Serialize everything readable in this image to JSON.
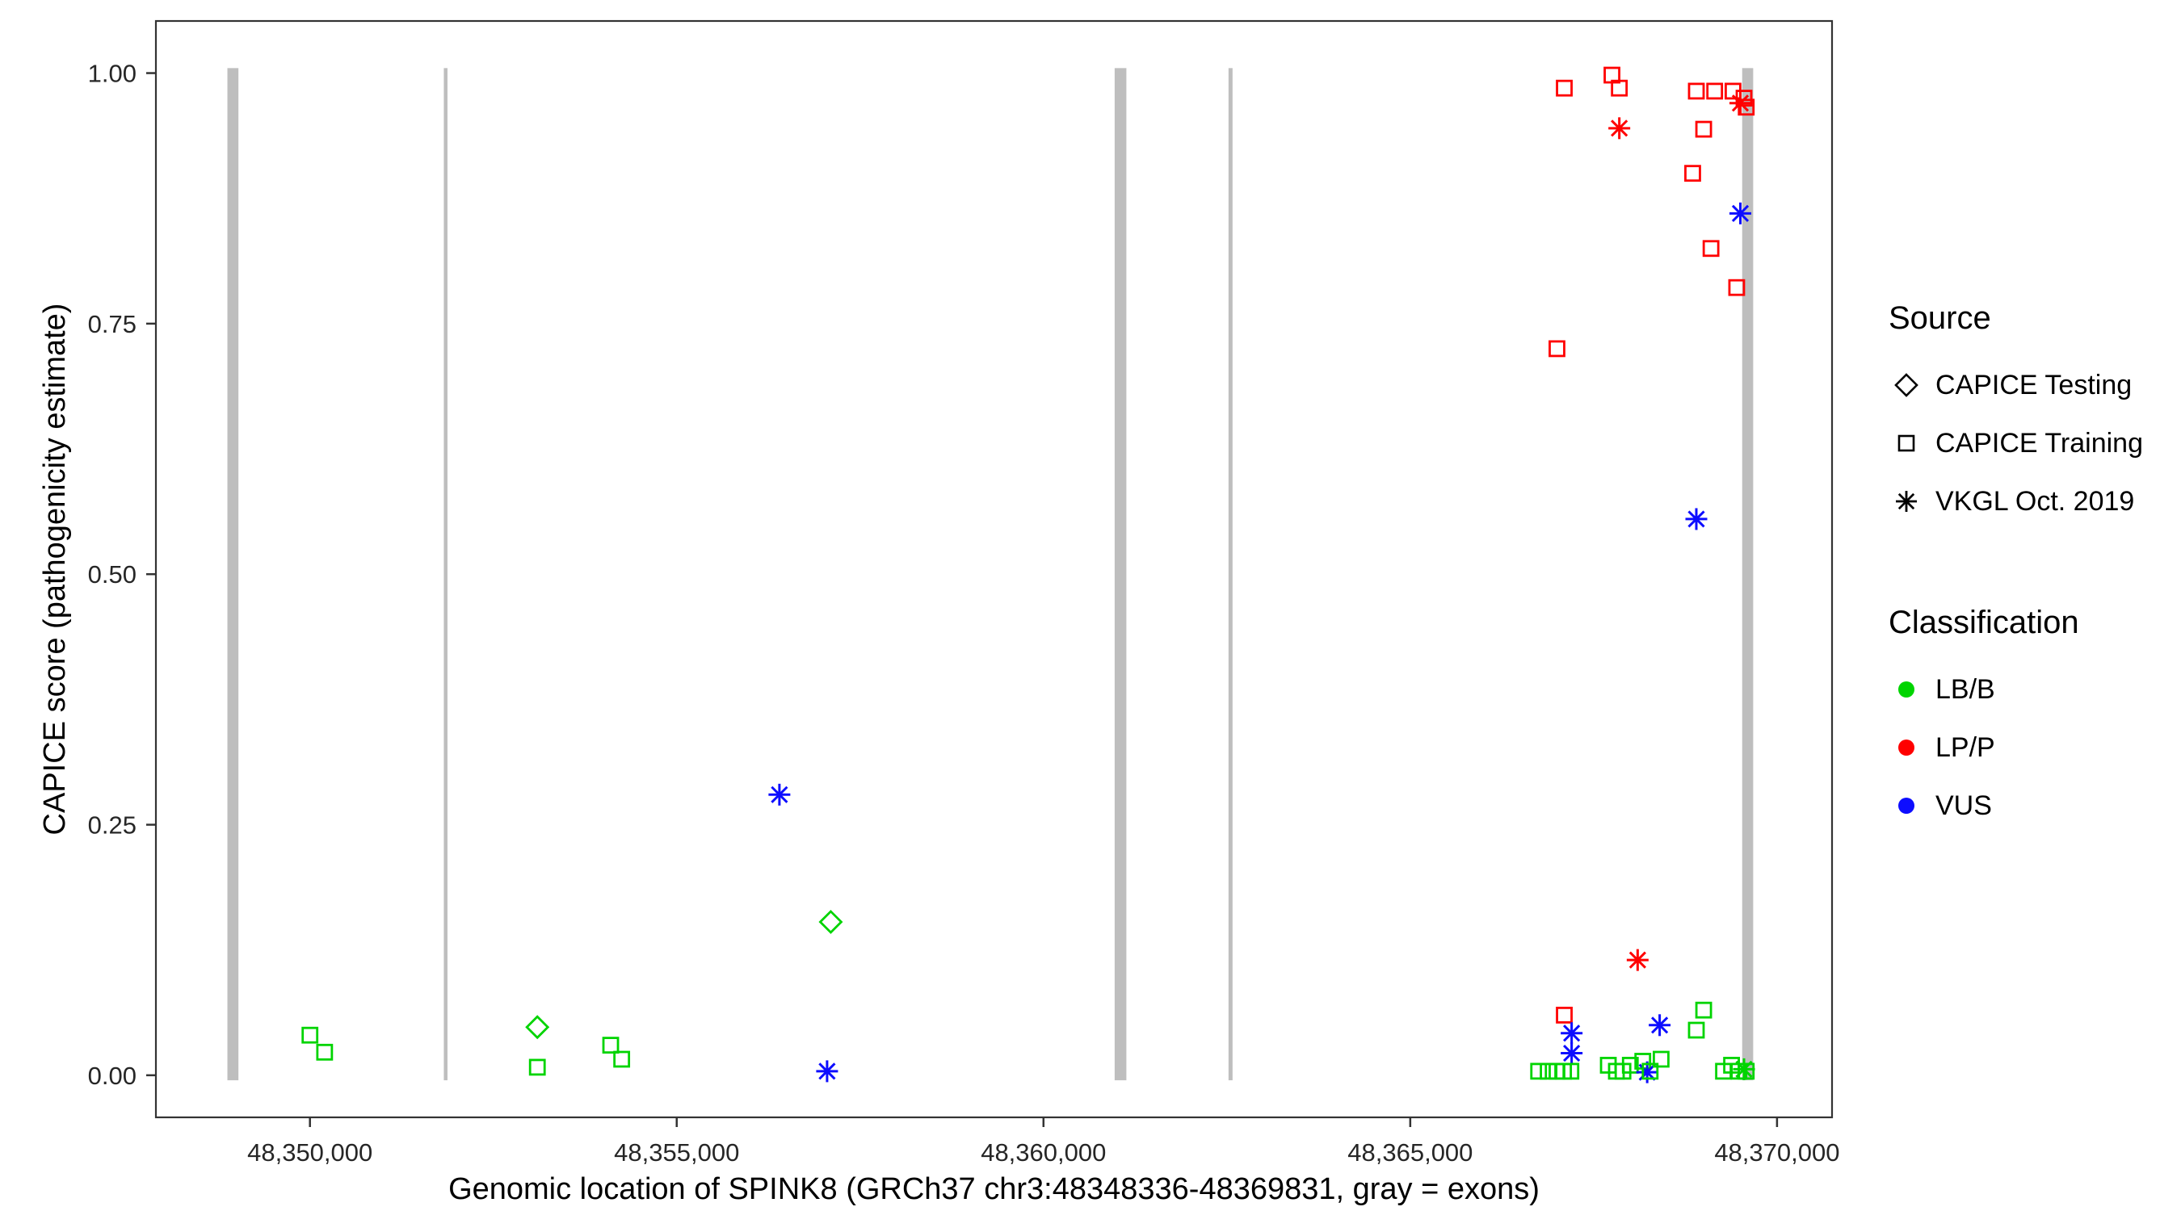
{
  "figure": {
    "background": "#FFFFFF"
  },
  "chart_data": {
    "type": "scatter",
    "title": "",
    "xlabel": "Genomic location of SPINK8 (GRCh37 chr3:48348336-48369831, gray = exons)",
    "ylabel": "CAPICE score (pathogenicity estimate)",
    "x_domain": [
      48347900,
      48370750
    ],
    "y_domain": [
      -0.042,
      1.052
    ],
    "grid": false,
    "x_ticks": [
      {
        "value": 48350000,
        "label": "48,350,000"
      },
      {
        "value": 48355000,
        "label": "48,355,000"
      },
      {
        "value": 48360000,
        "label": "48,360,000"
      },
      {
        "value": 48365000,
        "label": "48,365,000"
      },
      {
        "value": 48370000,
        "label": "48,370,000"
      }
    ],
    "y_ticks": [
      {
        "value": 0.0,
        "label": "0.00"
      },
      {
        "value": 0.25,
        "label": "0.25"
      },
      {
        "value": 0.5,
        "label": "0.50"
      },
      {
        "value": 0.75,
        "label": "0.75"
      },
      {
        "value": 1.0,
        "label": "1.00"
      }
    ],
    "exon_color": "#BEBEBE",
    "exons": [
      {
        "center": 48348950,
        "width": 150
      },
      {
        "center": 48351850,
        "width": 50
      },
      {
        "center": 48361050,
        "width": 160
      },
      {
        "center": 48362550,
        "width": 55
      },
      {
        "center": 48369600,
        "width": 150
      }
    ],
    "classification_colors": {
      "LB/B": "#00D400",
      "LP/P": "#FF0000",
      "VUS": "#0D0DFF"
    },
    "source_shapes": {
      "CAPICE Testing": "diamond",
      "CAPICE Training": "square",
      "VKGL Oct. 2019": "asterisk"
    },
    "points": [
      {
        "x": 48350000,
        "y": 0.04,
        "source": "CAPICE Training",
        "classification": "LB/B"
      },
      {
        "x": 48350200,
        "y": 0.023,
        "source": "CAPICE Training",
        "classification": "LB/B"
      },
      {
        "x": 48353100,
        "y": 0.048,
        "source": "CAPICE Testing",
        "classification": "LB/B"
      },
      {
        "x": 48353100,
        "y": 0.008,
        "source": "CAPICE Training",
        "classification": "LB/B"
      },
      {
        "x": 48354100,
        "y": 0.03,
        "source": "CAPICE Training",
        "classification": "LB/B"
      },
      {
        "x": 48354250,
        "y": 0.016,
        "source": "CAPICE Training",
        "classification": "LB/B"
      },
      {
        "x": 48356400,
        "y": 0.28,
        "source": "VKGL Oct. 2019",
        "classification": "VUS"
      },
      {
        "x": 48357100,
        "y": 0.153,
        "source": "CAPICE Testing",
        "classification": "LB/B"
      },
      {
        "x": 48357050,
        "y": 0.004,
        "source": "VKGL Oct. 2019",
        "classification": "VUS"
      },
      {
        "x": 48367100,
        "y": 0.985,
        "source": "CAPICE Training",
        "classification": "LP/P"
      },
      {
        "x": 48367750,
        "y": 0.998,
        "source": "CAPICE Training",
        "classification": "LP/P"
      },
      {
        "x": 48367850,
        "y": 0.985,
        "source": "CAPICE Training",
        "classification": "LP/P"
      },
      {
        "x": 48367850,
        "y": 0.945,
        "source": "VKGL Oct. 2019",
        "classification": "LP/P"
      },
      {
        "x": 48368900,
        "y": 0.982,
        "source": "CAPICE Training",
        "classification": "LP/P"
      },
      {
        "x": 48369150,
        "y": 0.982,
        "source": "CAPICE Training",
        "classification": "LP/P"
      },
      {
        "x": 48369000,
        "y": 0.944,
        "source": "CAPICE Training",
        "classification": "LP/P"
      },
      {
        "x": 48369400,
        "y": 0.982,
        "source": "CAPICE Training",
        "classification": "LP/P"
      },
      {
        "x": 48369550,
        "y": 0.975,
        "source": "CAPICE Training",
        "classification": "LP/P"
      },
      {
        "x": 48369580,
        "y": 0.966,
        "source": "CAPICE Training",
        "classification": "LP/P"
      },
      {
        "x": 48369500,
        "y": 0.97,
        "source": "VKGL Oct. 2019",
        "classification": "LP/P"
      },
      {
        "x": 48368850,
        "y": 0.9,
        "source": "CAPICE Training",
        "classification": "LP/P"
      },
      {
        "x": 48369500,
        "y": 0.86,
        "source": "VKGL Oct. 2019",
        "classification": "VUS"
      },
      {
        "x": 48369100,
        "y": 0.825,
        "source": "CAPICE Training",
        "classification": "LP/P"
      },
      {
        "x": 48369450,
        "y": 0.786,
        "source": "CAPICE Training",
        "classification": "LP/P"
      },
      {
        "x": 48367000,
        "y": 0.725,
        "source": "CAPICE Training",
        "classification": "LP/P"
      },
      {
        "x": 48368900,
        "y": 0.555,
        "source": "VKGL Oct. 2019",
        "classification": "VUS"
      },
      {
        "x": 48368100,
        "y": 0.115,
        "source": "VKGL Oct. 2019",
        "classification": "LP/P"
      },
      {
        "x": 48367100,
        "y": 0.06,
        "source": "CAPICE Training",
        "classification": "LP/P"
      },
      {
        "x": 48367200,
        "y": 0.042,
        "source": "VKGL Oct. 2019",
        "classification": "VUS"
      },
      {
        "x": 48367200,
        "y": 0.022,
        "source": "VKGL Oct. 2019",
        "classification": "VUS"
      },
      {
        "x": 48366750,
        "y": 0.004,
        "source": "CAPICE Training",
        "classification": "LB/B"
      },
      {
        "x": 48366880,
        "y": 0.004,
        "source": "CAPICE Training",
        "classification": "LB/B"
      },
      {
        "x": 48367000,
        "y": 0.004,
        "source": "CAPICE Training",
        "classification": "LB/B"
      },
      {
        "x": 48367090,
        "y": 0.004,
        "source": "CAPICE Training",
        "classification": "LB/B"
      },
      {
        "x": 48367190,
        "y": 0.004,
        "source": "CAPICE Training",
        "classification": "LB/B"
      },
      {
        "x": 48367700,
        "y": 0.01,
        "source": "CAPICE Training",
        "classification": "LB/B"
      },
      {
        "x": 48367810,
        "y": 0.004,
        "source": "CAPICE Training",
        "classification": "LB/B"
      },
      {
        "x": 48367900,
        "y": 0.004,
        "source": "CAPICE Training",
        "classification": "LB/B"
      },
      {
        "x": 48368000,
        "y": 0.01,
        "source": "CAPICE Training",
        "classification": "LB/B"
      },
      {
        "x": 48368170,
        "y": 0.014,
        "source": "CAPICE Training",
        "classification": "LB/B"
      },
      {
        "x": 48368230,
        "y": 0.003,
        "source": "VKGL Oct. 2019",
        "classification": "VUS"
      },
      {
        "x": 48368270,
        "y": 0.004,
        "source": "CAPICE Training",
        "classification": "LB/B"
      },
      {
        "x": 48368420,
        "y": 0.016,
        "source": "CAPICE Training",
        "classification": "LB/B"
      },
      {
        "x": 48368400,
        "y": 0.05,
        "source": "VKGL Oct. 2019",
        "classification": "VUS"
      },
      {
        "x": 48368900,
        "y": 0.045,
        "source": "CAPICE Training",
        "classification": "LB/B"
      },
      {
        "x": 48369000,
        "y": 0.065,
        "source": "CAPICE Training",
        "classification": "LB/B"
      },
      {
        "x": 48369270,
        "y": 0.004,
        "source": "CAPICE Training",
        "classification": "LB/B"
      },
      {
        "x": 48369380,
        "y": 0.01,
        "source": "CAPICE Training",
        "classification": "LB/B"
      },
      {
        "x": 48369480,
        "y": 0.004,
        "source": "CAPICE Training",
        "classification": "LB/B"
      },
      {
        "x": 48369580,
        "y": 0.004,
        "source": "CAPICE Training",
        "classification": "LB/B"
      },
      {
        "x": 48369550,
        "y": 0.006,
        "source": "VKGL Oct. 2019",
        "classification": "LB/B"
      }
    ]
  },
  "legend": {
    "source_title": "Source",
    "source_items": [
      {
        "label": "CAPICE Testing",
        "shape": "diamond"
      },
      {
        "label": "CAPICE Training",
        "shape": "square"
      },
      {
        "label": "VKGL Oct. 2019",
        "shape": "asterisk"
      }
    ],
    "classification_title": "Classification",
    "classification_items": [
      {
        "label": "LB/B",
        "color": "#00D400"
      },
      {
        "label": "LP/P",
        "color": "#FF0000"
      },
      {
        "label": "VUS",
        "color": "#0D0DFF"
      }
    ]
  }
}
